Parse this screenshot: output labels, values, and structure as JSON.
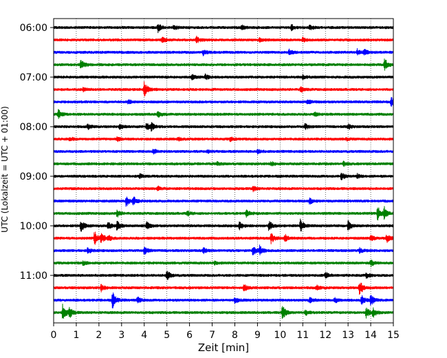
{
  "chart_data": {
    "type": "line",
    "chart_kind": "helicorder",
    "xlabel": "Zeit  [min]",
    "ylabel": "UTC (Lokalzeit = UTC + 01:00)",
    "xlim": [
      0,
      15
    ],
    "x_ticks": [
      "0",
      "1",
      "2",
      "3",
      "4",
      "5",
      "6",
      "7",
      "8",
      "9",
      "10",
      "11",
      "12",
      "13",
      "14",
      "15"
    ],
    "y_ticks": [
      "06:00",
      "07:00",
      "08:00",
      "09:00",
      "10:00",
      "11:00"
    ],
    "grid": "vertical dotted lines at each minute",
    "row_interval_minutes": 15,
    "start_time": "06:00",
    "colors": [
      "#000000",
      "#ff0000",
      "#0000ff",
      "#008000"
    ],
    "traces": [
      {
        "row": 0,
        "start": "06:00",
        "color": "#000000",
        "events": [
          {
            "t": 4.6,
            "a": 0.9
          },
          {
            "t": 5.3,
            "a": 0.5
          },
          {
            "t": 8.3,
            "a": 0.4
          },
          {
            "t": 10.5,
            "a": 0.6
          },
          {
            "t": 11.3,
            "a": 0.5
          }
        ]
      },
      {
        "row": 1,
        "start": "06:15",
        "color": "#ff0000",
        "events": [
          {
            "t": 4.8,
            "a": 0.6
          },
          {
            "t": 6.3,
            "a": 0.7
          },
          {
            "t": 9.1,
            "a": 0.5
          },
          {
            "t": 11.0,
            "a": 0.4
          }
        ]
      },
      {
        "row": 2,
        "start": "06:30",
        "color": "#0000ff",
        "events": [
          {
            "t": 6.6,
            "a": 0.5
          },
          {
            "t": 10.4,
            "a": 0.5
          },
          {
            "t": 13.4,
            "a": 0.6
          },
          {
            "t": 13.7,
            "a": 0.6
          }
        ]
      },
      {
        "row": 3,
        "start": "06:45",
        "color": "#008000",
        "events": [
          {
            "t": 1.2,
            "a": 1.0
          },
          {
            "t": 14.6,
            "a": 1.4
          }
        ]
      },
      {
        "row": 4,
        "start": "07:00",
        "color": "#000000",
        "events": [
          {
            "t": 6.1,
            "a": 0.5
          },
          {
            "t": 6.7,
            "a": 0.5
          },
          {
            "t": 11.0,
            "a": 0.4
          }
        ]
      },
      {
        "row": 5,
        "start": "07:15",
        "color": "#ff0000",
        "events": [
          {
            "t": 1.3,
            "a": 0.3
          },
          {
            "t": 4.0,
            "a": 1.6
          },
          {
            "t": 10.9,
            "a": 0.6
          }
        ]
      },
      {
        "row": 6,
        "start": "07:30",
        "color": "#0000ff",
        "events": [
          {
            "t": 3.3,
            "a": 0.4
          },
          {
            "t": 11.2,
            "a": 0.4
          },
          {
            "t": 14.9,
            "a": 0.9
          }
        ]
      },
      {
        "row": 7,
        "start": "07:45",
        "color": "#008000",
        "events": [
          {
            "t": 0.2,
            "a": 0.9
          },
          {
            "t": 4.6,
            "a": 0.6
          },
          {
            "t": 11.5,
            "a": 0.4
          }
        ]
      },
      {
        "row": 8,
        "start": "08:00",
        "color": "#000000",
        "events": [
          {
            "t": 1.5,
            "a": 0.5
          },
          {
            "t": 2.9,
            "a": 0.5
          },
          {
            "t": 4.1,
            "a": 0.8
          },
          {
            "t": 4.3,
            "a": 0.8
          },
          {
            "t": 11.1,
            "a": 0.6
          },
          {
            "t": 13.0,
            "a": 0.5
          }
        ]
      },
      {
        "row": 9,
        "start": "08:15",
        "color": "#ff0000",
        "events": [
          {
            "t": 0.7,
            "a": 0.4
          },
          {
            "t": 2.8,
            "a": 0.4
          },
          {
            "t": 5.5,
            "a": 0.3
          },
          {
            "t": 7.8,
            "a": 0.4
          },
          {
            "t": 12.9,
            "a": 0.3
          }
        ]
      },
      {
        "row": 10,
        "start": "08:30",
        "color": "#0000ff",
        "events": [
          {
            "t": 4.4,
            "a": 0.5
          },
          {
            "t": 6.8,
            "a": 0.3
          },
          {
            "t": 9.0,
            "a": 0.4
          }
        ]
      },
      {
        "row": 11,
        "start": "08:45",
        "color": "#008000",
        "events": [
          {
            "t": 7.2,
            "a": 0.4
          },
          {
            "t": 9.6,
            "a": 0.4
          },
          {
            "t": 12.8,
            "a": 0.4
          }
        ]
      },
      {
        "row": 12,
        "start": "09:00",
        "color": "#000000",
        "events": [
          {
            "t": 3.8,
            "a": 0.4
          },
          {
            "t": 12.7,
            "a": 0.7
          },
          {
            "t": 13.4,
            "a": 0.4
          }
        ]
      },
      {
        "row": 13,
        "start": "09:15",
        "color": "#ff0000",
        "events": [
          {
            "t": 4.6,
            "a": 0.5
          },
          {
            "t": 8.8,
            "a": 0.5
          }
        ]
      },
      {
        "row": 14,
        "start": "09:30",
        "color": "#0000ff",
        "events": [
          {
            "t": 3.2,
            "a": 1.1
          },
          {
            "t": 3.5,
            "a": 1.0
          },
          {
            "t": 11.3,
            "a": 0.6
          }
        ]
      },
      {
        "row": 15,
        "start": "09:45",
        "color": "#008000",
        "events": [
          {
            "t": 2.8,
            "a": 0.7
          },
          {
            "t": 5.9,
            "a": 0.5
          },
          {
            "t": 8.5,
            "a": 0.7
          },
          {
            "t": 14.3,
            "a": 1.5
          },
          {
            "t": 14.6,
            "a": 1.2
          }
        ]
      },
      {
        "row": 16,
        "start": "10:00",
        "color": "#000000",
        "events": [
          {
            "t": 1.2,
            "a": 1.3
          },
          {
            "t": 2.4,
            "a": 0.8
          },
          {
            "t": 2.8,
            "a": 1.0
          },
          {
            "t": 4.1,
            "a": 0.8
          },
          {
            "t": 8.2,
            "a": 0.8
          },
          {
            "t": 9.5,
            "a": 1.1
          },
          {
            "t": 10.9,
            "a": 1.4
          },
          {
            "t": 13.0,
            "a": 1.0
          }
        ]
      },
      {
        "row": 17,
        "start": "10:15",
        "color": "#ff0000",
        "events": [
          {
            "t": 1.8,
            "a": 1.5
          },
          {
            "t": 2.1,
            "a": 1.0
          },
          {
            "t": 2.4,
            "a": 0.6
          },
          {
            "t": 9.6,
            "a": 1.1
          },
          {
            "t": 10.2,
            "a": 0.8
          },
          {
            "t": 14.0,
            "a": 0.6
          },
          {
            "t": 14.7,
            "a": 0.9
          }
        ]
      },
      {
        "row": 18,
        "start": "10:30",
        "color": "#0000ff",
        "events": [
          {
            "t": 1.5,
            "a": 0.6
          },
          {
            "t": 4.0,
            "a": 0.8
          },
          {
            "t": 6.6,
            "a": 0.6
          },
          {
            "t": 8.8,
            "a": 1.1
          },
          {
            "t": 9.1,
            "a": 1.0
          },
          {
            "t": 13.5,
            "a": 0.5
          }
        ]
      },
      {
        "row": 19,
        "start": "10:45",
        "color": "#008000",
        "events": [
          {
            "t": 1.3,
            "a": 0.4
          },
          {
            "t": 7.1,
            "a": 0.3
          },
          {
            "t": 14.0,
            "a": 0.7
          }
        ]
      },
      {
        "row": 20,
        "start": "11:00",
        "color": "#000000",
        "events": [
          {
            "t": 5.0,
            "a": 1.1
          },
          {
            "t": 12.0,
            "a": 0.7
          },
          {
            "t": 13.8,
            "a": 0.5
          }
        ]
      },
      {
        "row": 21,
        "start": "11:15",
        "color": "#ff0000",
        "events": [
          {
            "t": 2.1,
            "a": 0.7
          },
          {
            "t": 8.4,
            "a": 0.7
          },
          {
            "t": 11.6,
            "a": 0.5
          },
          {
            "t": 13.5,
            "a": 1.6
          }
        ]
      },
      {
        "row": 22,
        "start": "11:30",
        "color": "#0000ff",
        "events": [
          {
            "t": 2.6,
            "a": 1.7
          },
          {
            "t": 3.7,
            "a": 0.6
          },
          {
            "t": 8.0,
            "a": 0.6
          },
          {
            "t": 11.3,
            "a": 0.6
          },
          {
            "t": 12.4,
            "a": 0.6
          },
          {
            "t": 13.6,
            "a": 1.0
          },
          {
            "t": 14.0,
            "a": 1.1
          }
        ]
      },
      {
        "row": 23,
        "start": "11:45",
        "color": "#008000",
        "events": [
          {
            "t": 0.4,
            "a": 1.7
          },
          {
            "t": 0.7,
            "a": 1.0
          },
          {
            "t": 10.1,
            "a": 1.4
          },
          {
            "t": 11.1,
            "a": 0.6
          },
          {
            "t": 13.8,
            "a": 1.0
          },
          {
            "t": 14.1,
            "a": 0.9
          }
        ]
      }
    ]
  }
}
